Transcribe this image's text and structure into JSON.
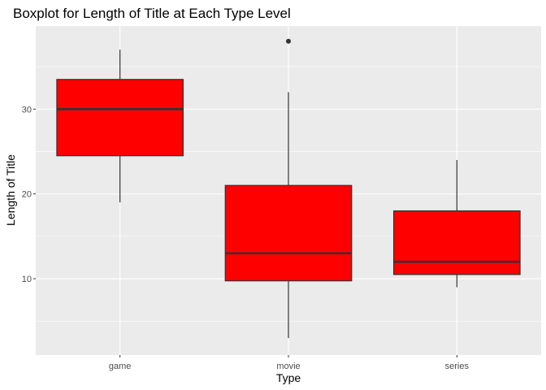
{
  "chart_data": {
    "type": "box",
    "title": "Boxplot for Length of Title at Each Type Level",
    "xlabel": "Type",
    "ylabel": "Length of Title",
    "categories": [
      "game",
      "movie",
      "series"
    ],
    "boxes": [
      {
        "category": "game",
        "min": 19,
        "q1": 24.5,
        "median": 30,
        "q3": 33.5,
        "max": 37,
        "outliers": []
      },
      {
        "category": "movie",
        "min": 3,
        "q1": 9.75,
        "median": 13,
        "q3": 21,
        "max": 32,
        "outliers": [
          38
        ]
      },
      {
        "category": "series",
        "min": 9,
        "q1": 10.5,
        "median": 12,
        "q3": 18,
        "max": 24,
        "outliers": []
      }
    ],
    "ylim": [
      1,
      39.8
    ],
    "yticks": [
      10,
      20,
      30
    ],
    "grid": true,
    "colors": {
      "box_fill": "#FF0000",
      "box_line": "#333333",
      "panel_bg": "#EBEBEB",
      "grid_major": "#FFFFFF",
      "tick_label": "#4D4D4D"
    }
  }
}
